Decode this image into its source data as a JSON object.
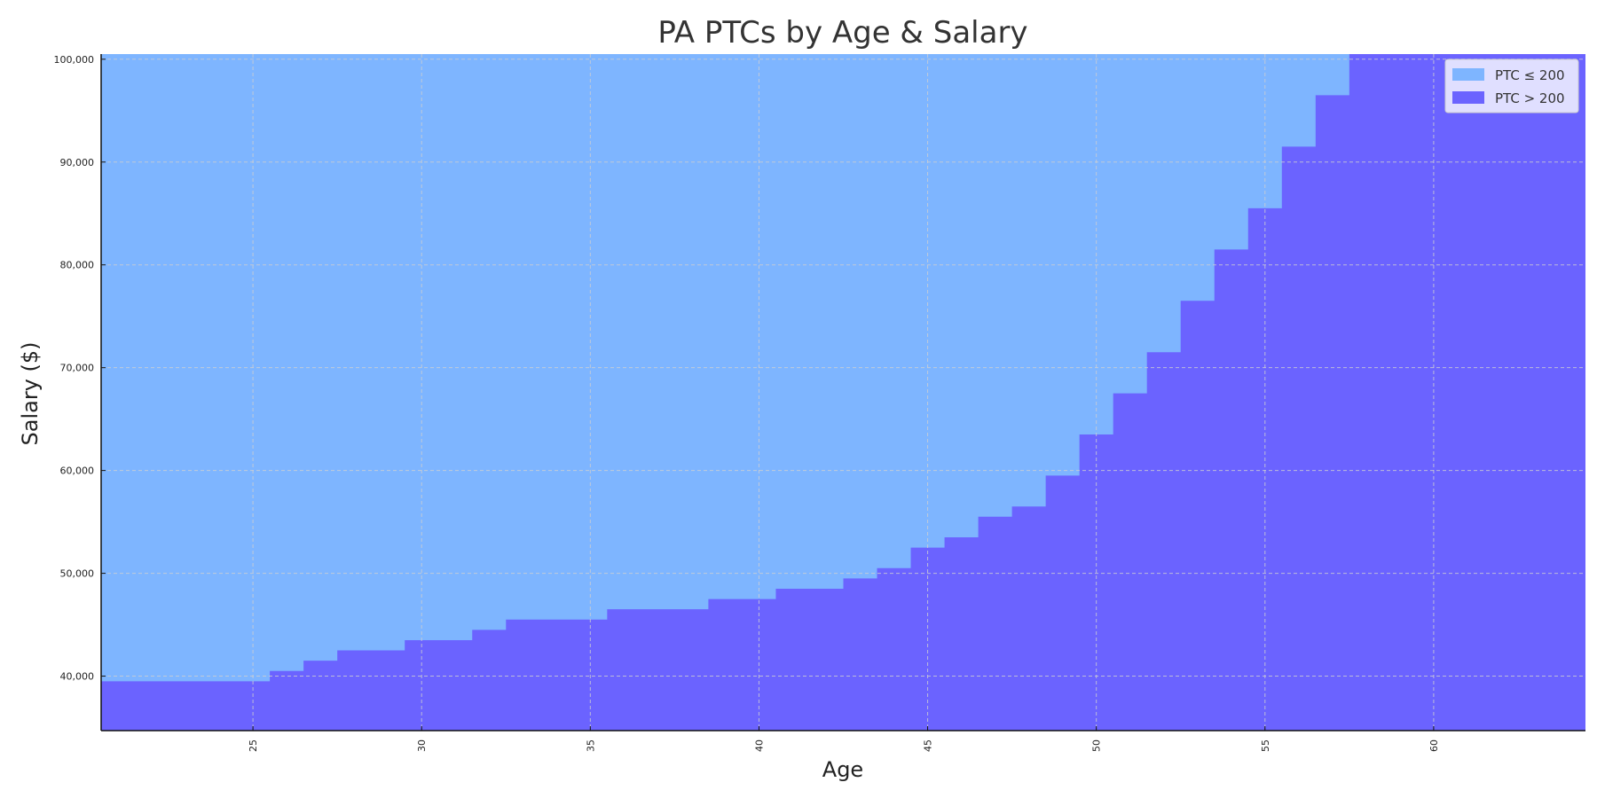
{
  "chart_data": {
    "type": "area",
    "title": "PA PTCs by Age & Salary",
    "xlabel": "Age",
    "ylabel": "Salary ($)",
    "xlim": [
      20.5,
      64.5
    ],
    "ylim": [
      34700,
      100500
    ],
    "x_ticks": [
      25,
      30,
      35,
      40,
      45,
      50,
      55,
      60
    ],
    "x_tick_labels": [
      "25",
      "30",
      "35",
      "40",
      "45",
      "50",
      "55",
      "60"
    ],
    "y_ticks": [
      40000,
      50000,
      60000,
      70000,
      80000,
      90000,
      100000
    ],
    "y_tick_labels": [
      "40,000",
      "50,000",
      "60,000",
      "70,000",
      "80,000",
      "90,000",
      "100,000"
    ],
    "grid": true,
    "legend_position": "top-right",
    "series": [
      {
        "name": "PTC ≤ 200",
        "color": "#7eb5ff"
      },
      {
        "name": "PTC > 200",
        "color": "#6b63ff"
      }
    ],
    "boundary": {
      "description_of_values": "threshold salary by age",
      "ages": [
        21,
        22,
        23,
        24,
        25,
        26,
        27,
        28,
        29,
        30,
        31,
        32,
        33,
        34,
        35,
        36,
        37,
        38,
        39,
        40,
        41,
        42,
        43,
        44,
        45,
        46,
        47,
        48,
        49,
        50,
        51,
        52,
        53,
        54,
        55,
        56,
        57,
        58,
        59,
        60,
        61,
        62,
        63,
        64
      ],
      "salaries": [
        39500,
        39500,
        39500,
        39500,
        39500,
        40500,
        41500,
        42500,
        42500,
        43500,
        43500,
        44500,
        45500,
        45500,
        45500,
        46500,
        46500,
        46500,
        47500,
        47500,
        48500,
        48500,
        49500,
        50500,
        52500,
        53500,
        55500,
        56500,
        59500,
        63500,
        67500,
        71500,
        76500,
        81500,
        85500,
        91500,
        96500,
        100500,
        100500,
        100500,
        100500,
        100500,
        100500,
        100500
      ]
    }
  }
}
